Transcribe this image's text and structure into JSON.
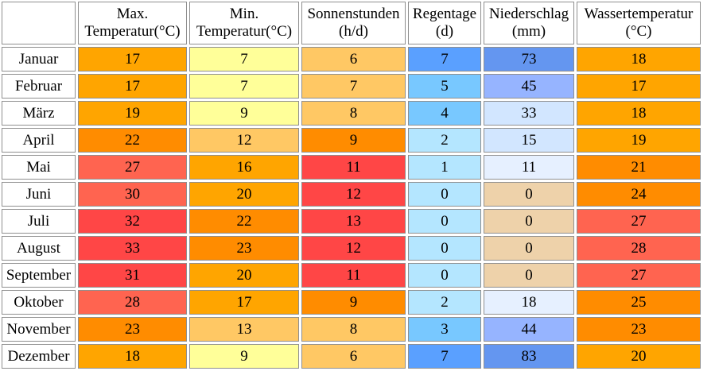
{
  "columns": [
    {
      "line1": "",
      "line2": ""
    },
    {
      "line1": "Max.",
      "line2": "Temperatur(°C)"
    },
    {
      "line1": "Min.",
      "line2": "Temperatur(°C)"
    },
    {
      "line1": "Sonnenstunden",
      "line2": "(h/d)"
    },
    {
      "line1": "Regentage",
      "line2": "(d)"
    },
    {
      "line1": "Niederschlag",
      "line2": "(mm)"
    },
    {
      "line1": "Wassertemperatur",
      "line2": "(°C)"
    }
  ],
  "rows": [
    {
      "month": "Januar",
      "values": [
        17,
        7,
        6,
        7,
        73,
        18
      ],
      "colors": [
        "#ffa500",
        "#ffff99",
        "#ffc864",
        "#5aa0ff",
        "#6496f0",
        "#ffa500"
      ]
    },
    {
      "month": "Februar",
      "values": [
        17,
        7,
        7,
        5,
        45,
        17
      ],
      "colors": [
        "#ffa500",
        "#ffff99",
        "#ffc864",
        "#78c8ff",
        "#96b4ff",
        "#ffa500"
      ]
    },
    {
      "month": "März",
      "values": [
        19,
        9,
        8,
        4,
        33,
        18
      ],
      "colors": [
        "#ffa500",
        "#ffff99",
        "#ffc864",
        "#78c8ff",
        "#d2e6ff",
        "#ffa500"
      ]
    },
    {
      "month": "April",
      "values": [
        22,
        12,
        9,
        2,
        15,
        19
      ],
      "colors": [
        "#ff8c00",
        "#ffc864",
        "#ff8c00",
        "#b4e6ff",
        "#d2e6ff",
        "#ffa500"
      ]
    },
    {
      "month": "Mai",
      "values": [
        27,
        16,
        11,
        1,
        11,
        21
      ],
      "colors": [
        "#ff6450",
        "#ffa500",
        "#ff4646",
        "#b4e6ff",
        "#e6f0ff",
        "#ff8c00"
      ]
    },
    {
      "month": "Juni",
      "values": [
        30,
        20,
        12,
        0,
        0,
        24
      ],
      "colors": [
        "#ff6450",
        "#ffa500",
        "#ff4646",
        "#b4e6ff",
        "#eed2aa",
        "#ff8c00"
      ]
    },
    {
      "month": "Juli",
      "values": [
        32,
        22,
        13,
        0,
        0,
        27
      ],
      "colors": [
        "#ff4646",
        "#ff8c00",
        "#ff4646",
        "#b4e6ff",
        "#eed2aa",
        "#ff6450"
      ]
    },
    {
      "month": "August",
      "values": [
        33,
        23,
        12,
        0,
        0,
        28
      ],
      "colors": [
        "#ff4646",
        "#ff8c00",
        "#ff4646",
        "#b4e6ff",
        "#eed2aa",
        "#ff6450"
      ]
    },
    {
      "month": "September",
      "values": [
        31,
        20,
        11,
        0,
        0,
        27
      ],
      "colors": [
        "#ff4646",
        "#ffa500",
        "#ff4646",
        "#b4e6ff",
        "#eed2aa",
        "#ff6450"
      ]
    },
    {
      "month": "Oktober",
      "values": [
        28,
        17,
        9,
        2,
        18,
        25
      ],
      "colors": [
        "#ff6450",
        "#ffa500",
        "#ff8c00",
        "#b4e6ff",
        "#e6f0ff",
        "#ff8c00"
      ]
    },
    {
      "month": "November",
      "values": [
        23,
        13,
        8,
        3,
        44,
        23
      ],
      "colors": [
        "#ff8c00",
        "#ffc864",
        "#ffc864",
        "#78c8ff",
        "#96b4ff",
        "#ff8c00"
      ]
    },
    {
      "month": "Dezember",
      "values": [
        18,
        9,
        6,
        7,
        83,
        20
      ],
      "colors": [
        "#ffa500",
        "#ffff99",
        "#ffc864",
        "#5aa0ff",
        "#6496f0",
        "#ffa500"
      ]
    }
  ]
}
